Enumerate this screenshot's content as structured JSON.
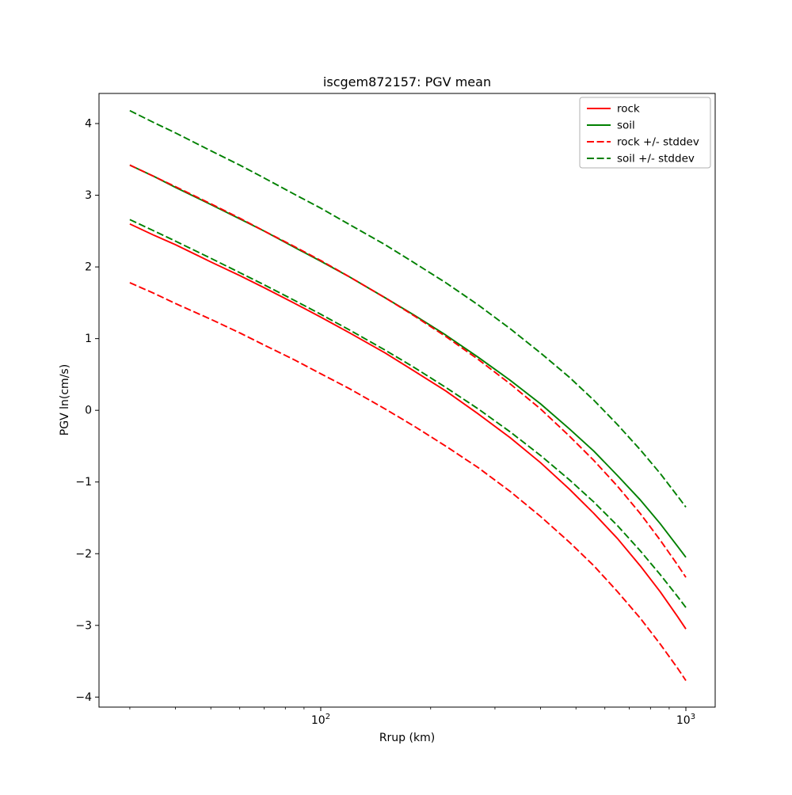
{
  "chart_data": {
    "type": "line",
    "title": "iscgem872157: PGV mean",
    "xlabel": "Rrup (km)",
    "ylabel": "PGV ln(cm/s)",
    "x_scale": "log",
    "xlim": [
      24.7,
      1203
    ],
    "ylim": [
      -4.14,
      4.42
    ],
    "x": [
      30,
      35,
      40,
      50,
      60,
      70,
      85,
      100,
      120,
      150,
      180,
      220,
      270,
      330,
      400,
      480,
      560,
      650,
      750,
      850,
      950,
      1000
    ],
    "series": [
      {
        "name": "rock",
        "color": "#ff0000",
        "style": "solid",
        "values": [
          2.6,
          2.44,
          2.31,
          2.07,
          1.88,
          1.71,
          1.49,
          1.3,
          1.08,
          0.8,
          0.55,
          0.27,
          -0.05,
          -0.38,
          -0.73,
          -1.1,
          -1.44,
          -1.79,
          -2.17,
          -2.53,
          -2.88,
          -3.05
        ]
      },
      {
        "name": "soil",
        "color": "#008000",
        "style": "solid",
        "values": [
          3.42,
          3.26,
          3.11,
          2.87,
          2.67,
          2.5,
          2.27,
          2.08,
          1.86,
          1.57,
          1.33,
          1.05,
          0.74,
          0.42,
          0.09,
          -0.26,
          -0.57,
          -0.91,
          -1.25,
          -1.58,
          -1.9,
          -2.05
        ]
      },
      {
        "name": "rock + stddev",
        "color": "#ff0000",
        "style": "dashed",
        "values": [
          3.42,
          3.26,
          3.12,
          2.88,
          2.68,
          2.5,
          2.28,
          2.09,
          1.86,
          1.57,
          1.32,
          1.03,
          0.71,
          0.37,
          0.02,
          -0.36,
          -0.7,
          -1.06,
          -1.44,
          -1.81,
          -2.16,
          -2.33
        ]
      },
      {
        "name": "rock - stddev",
        "color": "#ff0000",
        "style": "dashed",
        "values": [
          1.78,
          1.63,
          1.49,
          1.27,
          1.08,
          0.91,
          0.7,
          0.51,
          0.3,
          0.02,
          -0.22,
          -0.5,
          -0.8,
          -1.13,
          -1.48,
          -1.84,
          -2.17,
          -2.53,
          -2.9,
          -3.26,
          -3.6,
          -3.77
        ]
      },
      {
        "name": "soil + stddev",
        "color": "#008000",
        "style": "dashed",
        "values": [
          4.18,
          4.01,
          3.87,
          3.62,
          3.42,
          3.24,
          3.01,
          2.82,
          2.59,
          2.31,
          2.06,
          1.78,
          1.47,
          1.14,
          0.8,
          0.46,
          0.14,
          -0.2,
          -0.55,
          -0.88,
          -1.2,
          -1.35
        ]
      },
      {
        "name": "soil - stddev",
        "color": "#008000",
        "style": "dashed",
        "values": [
          2.66,
          2.5,
          2.36,
          2.12,
          1.92,
          1.75,
          1.53,
          1.34,
          1.12,
          0.84,
          0.6,
          0.32,
          0.02,
          -0.3,
          -0.63,
          -0.97,
          -1.28,
          -1.61,
          -1.96,
          -2.29,
          -2.6,
          -2.75
        ]
      }
    ],
    "legend": {
      "position": "upper right",
      "entries": [
        {
          "label": "rock",
          "color": "#ff0000",
          "style": "solid"
        },
        {
          "label": "soil",
          "color": "#008000",
          "style": "solid"
        },
        {
          "label": "rock +/- stddev",
          "color": "#ff0000",
          "style": "dashed"
        },
        {
          "label": "soil +/- stddev",
          "color": "#008000",
          "style": "dashed"
        }
      ]
    },
    "y_ticks": [
      4,
      3,
      2,
      1,
      0,
      -1,
      -2,
      -3,
      -4
    ],
    "x_major_ticks": [
      100,
      1000
    ],
    "x_minor_ticks": [
      30,
      40,
      50,
      60,
      70,
      80,
      90,
      200,
      300,
      400,
      500,
      600,
      700,
      800,
      900
    ],
    "grid": false
  }
}
